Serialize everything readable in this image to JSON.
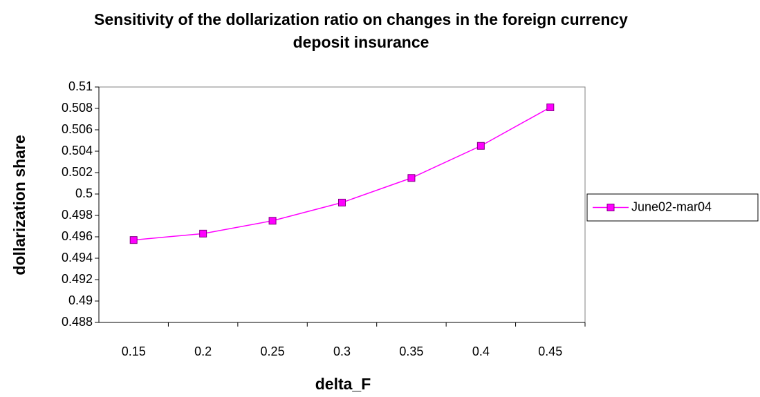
{
  "chart_data": {
    "type": "line",
    "title": "Sensitivity of the dollarization ratio on changes in the foreign currency deposit insurance",
    "x_label": "delta_F",
    "y_label": "dollarization share",
    "categories": [
      "0.15",
      "0.2",
      "0.25",
      "0.3",
      "0.35",
      "0.4",
      "0.45"
    ],
    "series": [
      {
        "name": "June02-mar04",
        "color": "#ff00ff",
        "values": [
          0.4957,
          0.4963,
          0.4975,
          0.4992,
          0.5015,
          0.5045,
          0.5081
        ]
      }
    ],
    "ylim": [
      0.488,
      0.51
    ],
    "yticks": [
      0.488,
      0.49,
      0.492,
      0.494,
      0.496,
      0.498,
      0.5,
      0.502,
      0.504,
      0.506,
      0.508,
      0.51
    ],
    "legend": "right"
  }
}
